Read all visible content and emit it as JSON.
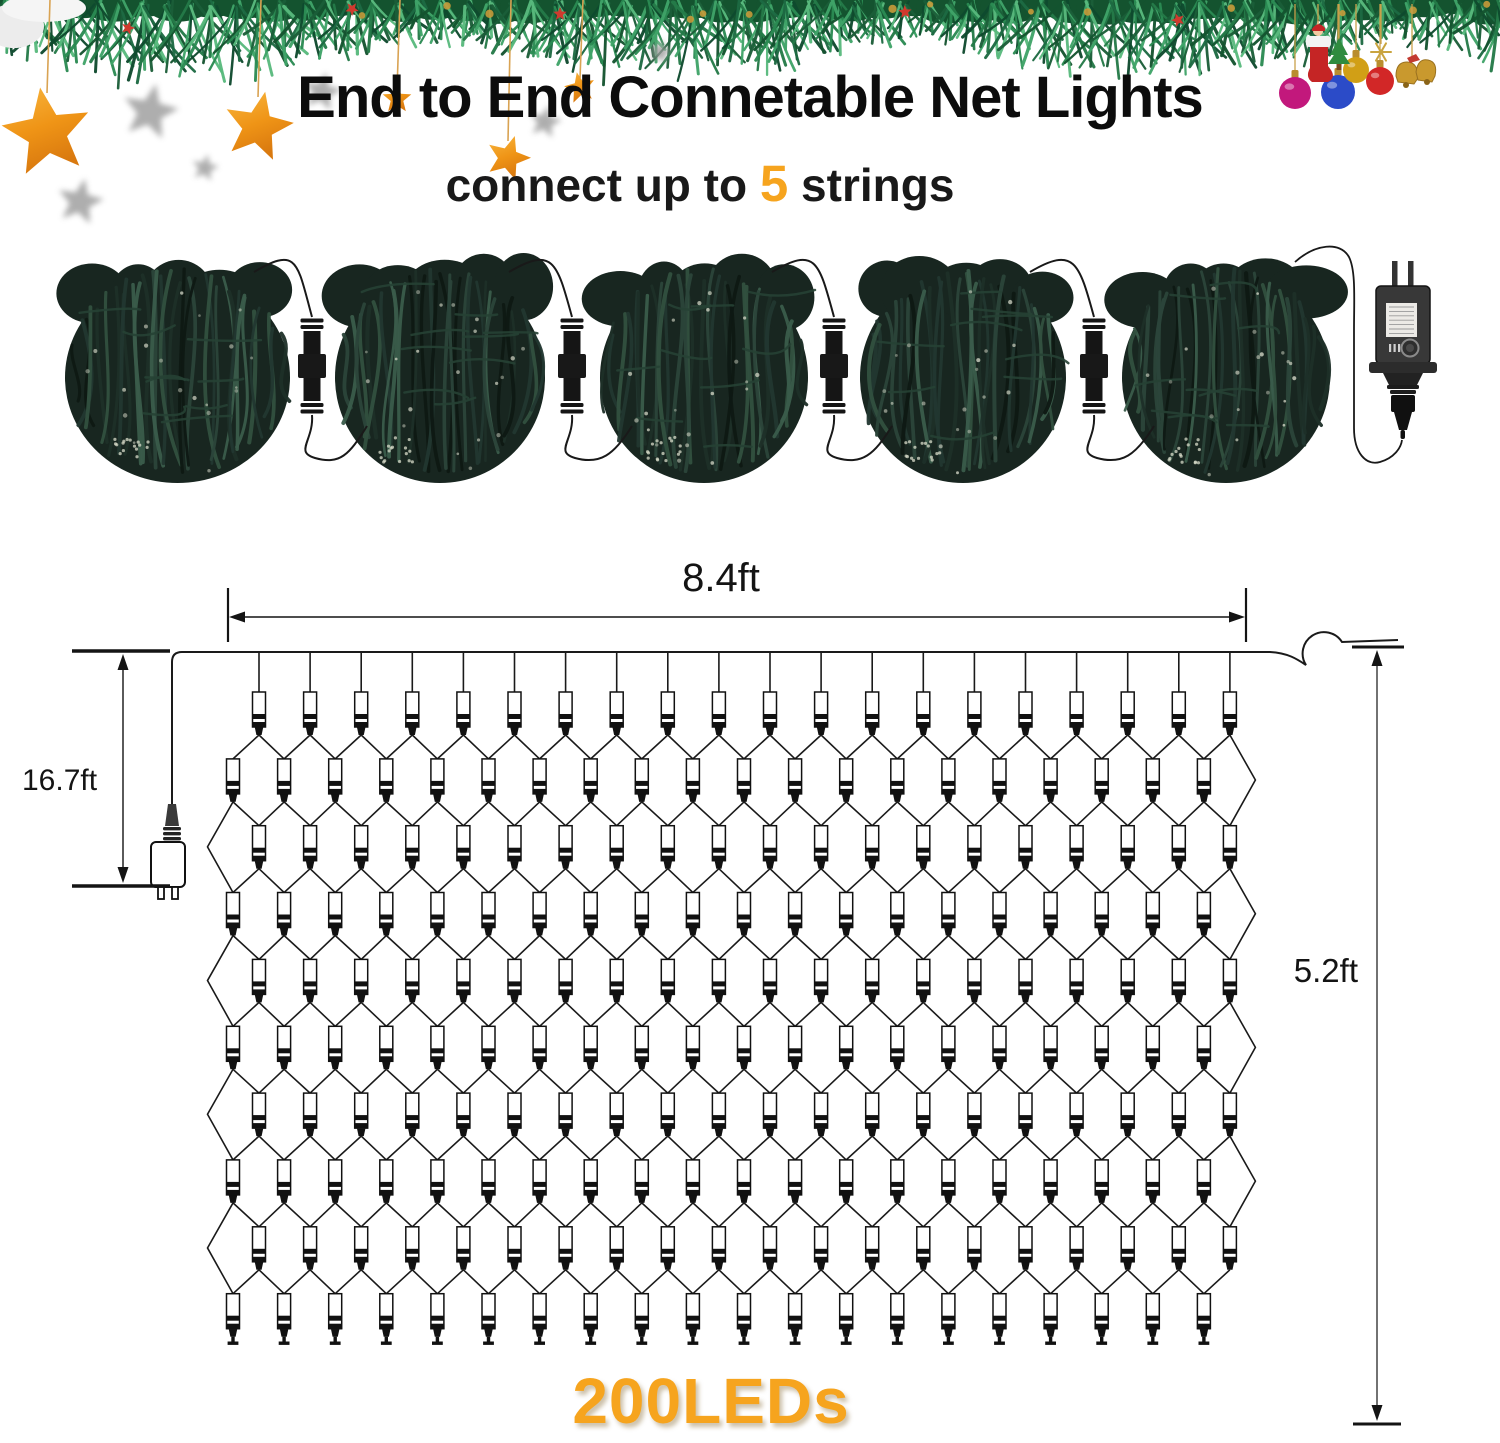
{
  "title": "End to End Connetable Net Lights",
  "subtitle": {
    "prefix": "connect up to ",
    "highlight": "5",
    "suffix": " strings"
  },
  "dimensions": {
    "net_width": "8.4ft",
    "lead_length": "16.7ft",
    "net_height": "5.2ft"
  },
  "led_count_label": "200LEDs",
  "product": {
    "connectable_strings": 5,
    "bundle_count": 5,
    "net_rows": 10,
    "net_columns": 20,
    "total_leds": 200
  },
  "colors": {
    "accent_orange": "#F6A41E",
    "diagram_line": "#1a1a1a",
    "bundle_green_dark": "#182620",
    "garland_green": "#1d6a43"
  }
}
